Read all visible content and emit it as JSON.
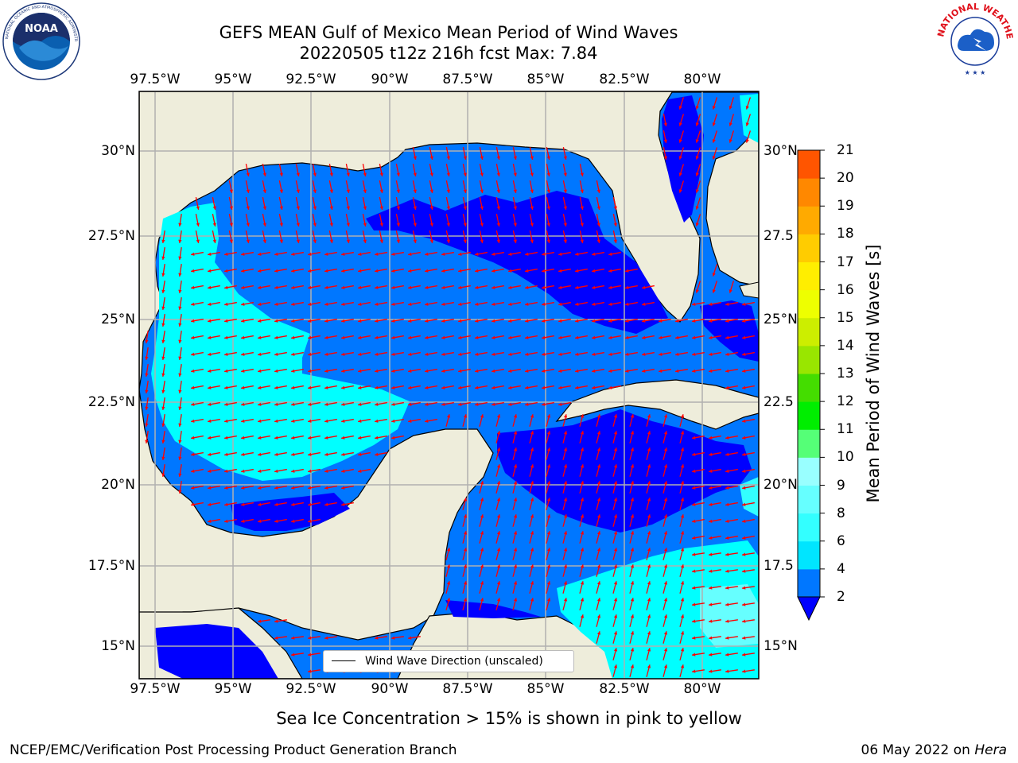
{
  "title": {
    "line1": "GEFS MEAN Gulf of Mexico Mean Period of Wind Waves",
    "line2": "20220505 t12z 216h fcst   Max: 7.84"
  },
  "logos": {
    "left": "NOAA",
    "left_ring_text": "NATIONAL OCEANIC AND ATMOSPHERIC ADMINISTRATION · U.S. DEPARTMENT OF COMMERCE",
    "right_ring_text": "NATIONAL WEATHER SERVICE"
  },
  "map": {
    "lon_labels": [
      "97.5°W",
      "95°W",
      "92.5°W",
      "90°W",
      "87.5°W",
      "85°W",
      "82.5°W",
      "80°W"
    ],
    "lat_labels_left": [
      "30°N",
      "27.5°N",
      "25°N",
      "22.5°N",
      "20°N",
      "17.5°N",
      "15°N"
    ],
    "lat_labels_right": [
      "30°N",
      "27.5",
      "25°N",
      "22.5",
      "20°N",
      "17.5",
      "15°N"
    ],
    "land_color": "#eeeddb",
    "arrow_color": "#ff0000",
    "grid": true,
    "legend_label": "Wind Wave Direction (unscaled)"
  },
  "colorbar": {
    "label": "Mean Period of Wind Waves [s]",
    "ticks": [
      "2",
      "4",
      "6",
      "8",
      "9",
      "10",
      "11",
      "12",
      "13",
      "14",
      "15",
      "16",
      "17",
      "18",
      "19",
      "20",
      "21"
    ],
    "colors": [
      "#0077ff",
      "#00e5ff",
      "#33ffff",
      "#66ffff",
      "#99ffff",
      "#55ff77",
      "#00ee00",
      "#44dd00",
      "#99e600",
      "#ccee00",
      "#eeff00",
      "#ffee00",
      "#ffcc00",
      "#ffaa00",
      "#ff8800",
      "#ff5500",
      "#ff2200",
      "#ff0000"
    ],
    "extend_color": "#0000ff"
  },
  "legend_field": {
    "period_colors": {
      "low": "#0000ff",
      "mid": "#0077ff",
      "high": "#00ffff",
      "peak": "#66ffff"
    }
  },
  "subtitle": "Sea Ice Concentration > 15% is shown in pink to yellow",
  "footer": {
    "left": "NCEP/EMC/Verification Post Processing Product Generation Branch",
    "date": "06 May 2022 on ",
    "host": "Hera"
  }
}
